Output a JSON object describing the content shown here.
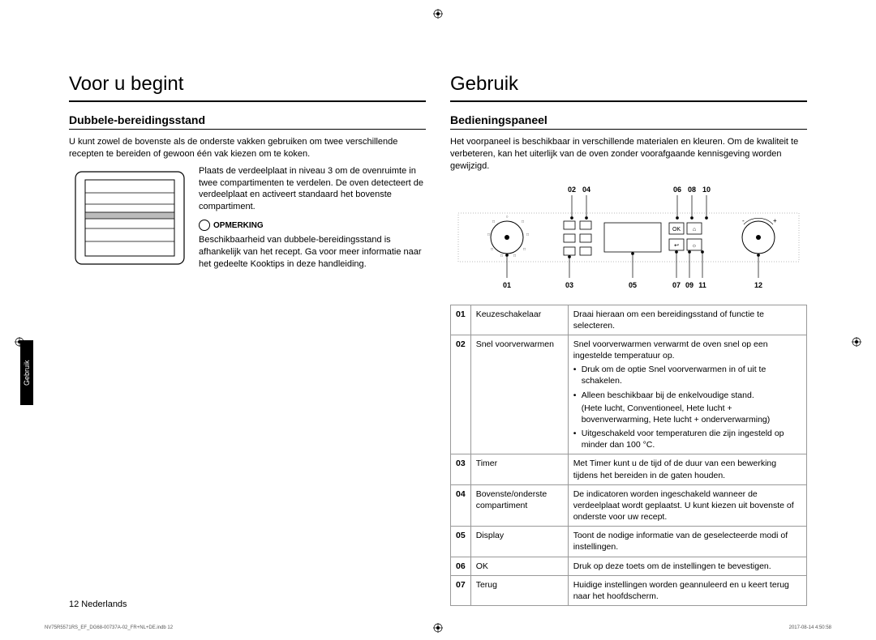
{
  "left": {
    "h1": "Voor u begint",
    "h2": "Dubbele-bereidingsstand",
    "intro": "U kunt zowel de bovenste als de onderste vakken gebruiken om twee verschillende recepten te bereiden of gewoon één vak kiezen om te koken.",
    "fig_text": "Plaats de verdeelplaat in niveau 3 om de ovenruimte in twee compartimenten te verdelen. De oven detecteert de verdeelplaat en activeert standaard het bovenste compartiment.",
    "note_label": "OPMERKING",
    "note_text": "Beschikbaarheid van dubbele-bereidingsstand is afhankelijk van het recept. Ga voor meer informatie naar het gedeelte Kooktips in deze handleiding."
  },
  "right": {
    "h1": "Gebruik",
    "h2": "Bedieningspaneel",
    "intro": "Het voorpaneel is beschikbaar in verschillende materialen en kleuren. Om de kwaliteit te verbeteren, kan het uiterlijk van de oven zonder voorafgaande kennisgeving worden gewijzigd.",
    "callouts_top": [
      "02",
      "04",
      "06",
      "08",
      "10"
    ],
    "callouts_bot": [
      "01",
      "03",
      "05",
      "07",
      "09",
      "11",
      "12"
    ],
    "rows": [
      {
        "n": "01",
        "l": "Keuzeschakelaar",
        "d": "Draai hieraan om een bereidingsstand of functie te selecteren."
      },
      {
        "n": "02",
        "l": "Snel voorverwarmen",
        "d": "Snel voorverwarmen verwarmt de oven snel op een ingestelde temperatuur op.",
        "bullets": [
          "Druk om de optie Snel voorverwarmen in of uit te schakelen.",
          "Alleen beschikbaar bij de enkelvoudige stand.\n(Hete lucht, Conventioneel, Hete lucht + bovenverwarming, Hete lucht + onderverwarming)",
          "Uitgeschakeld voor temperaturen die zijn ingesteld op minder dan 100 °C."
        ]
      },
      {
        "n": "03",
        "l": "Timer",
        "d": "Met Timer kunt u de tijd of de duur van een bewerking tijdens het bereiden in de gaten houden."
      },
      {
        "n": "04",
        "l": "Bovenste/onderste compartiment",
        "d": "De indicatoren worden ingeschakeld wanneer de verdeelplaat wordt geplaatst. U kunt kiezen uit bovenste of onderste voor uw recept."
      },
      {
        "n": "05",
        "l": "Display",
        "d": "Toont de nodige informatie van de geselecteerde modi of instellingen."
      },
      {
        "n": "06",
        "l": "OK",
        "d": "Druk op deze toets om de instellingen te bevestigen."
      },
      {
        "n": "07",
        "l": "Terug",
        "d": "Huidige instellingen worden geannuleerd en u keert terug naar het hoofdscherm."
      }
    ]
  },
  "side_tab": "Gebruik",
  "page_footer": "12  Nederlands",
  "tiny_left": "NV75R5571RS_EF_DG68-00737A-02_FR+NL+DE.indb   12",
  "tiny_right": "2017-08-14   4:50:58"
}
